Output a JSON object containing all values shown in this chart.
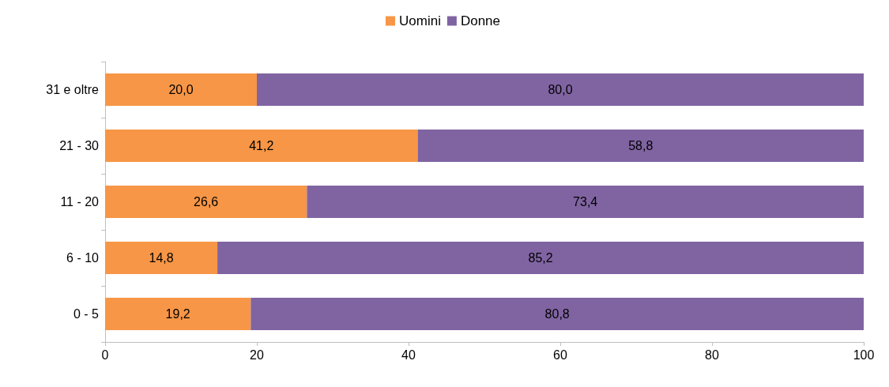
{
  "chart_data": {
    "type": "bar",
    "orientation": "horizontal",
    "stacked": true,
    "categories": [
      "31 e oltre",
      "21 - 30",
      "11 - 20",
      "6 - 10",
      "0 - 5"
    ],
    "series": [
      {
        "name": "Uomini",
        "color": "#f79646",
        "values": [
          20.0,
          41.2,
          26.6,
          14.8,
          19.2
        ],
        "value_labels": [
          "20,0",
          "41,2",
          "26,6",
          "14,8",
          "19,2"
        ]
      },
      {
        "name": "Donne",
        "color": "#8064a2",
        "values": [
          80.0,
          58.8,
          73.4,
          85.2,
          80.8
        ],
        "value_labels": [
          "80,0",
          "58,8",
          "73,4",
          "85,2",
          "80,8"
        ]
      }
    ],
    "xlim": [
      0,
      100
    ],
    "xticks": [
      0,
      20,
      40,
      60,
      80,
      100
    ],
    "grid": false,
    "legend": "top"
  }
}
